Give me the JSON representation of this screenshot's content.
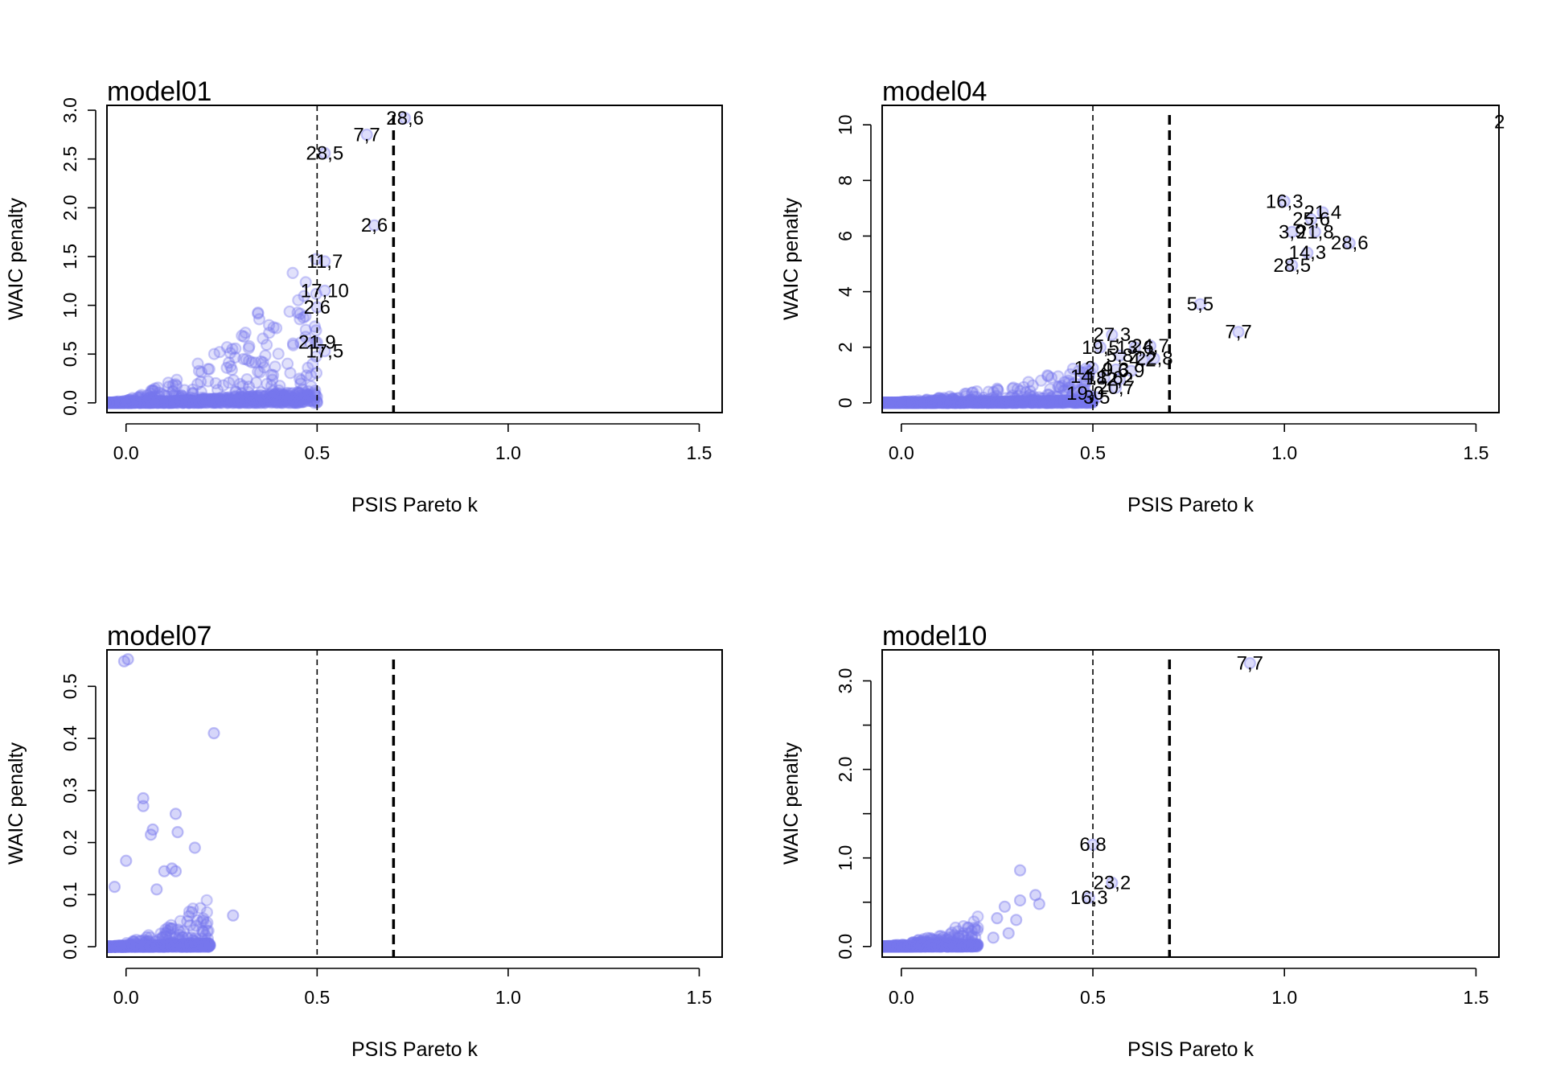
{
  "chart_data": [
    {
      "type": "scatter",
      "title": "model01",
      "xlabel": "PSIS Pareto k",
      "ylabel": "WAIC penalty",
      "xlim": [
        -0.05,
        1.56
      ],
      "ylim": [
        -0.1,
        3.05
      ],
      "xticks": [
        "0.0",
        "0.5",
        "1.0",
        "1.5"
      ],
      "yticks": [
        "0.0",
        "0.5",
        "1.0",
        "1.5",
        "2.0",
        "2.5",
        "3.0"
      ],
      "reference_lines": [
        {
          "x": 0.5,
          "style": "dashed-thin"
        },
        {
          "x": 0.7,
          "style": "dashed-thick"
        }
      ],
      "point_color": "#7777ee",
      "bulk_cloud": {
        "x_range": [
          -0.05,
          0.5
        ],
        "y_max": 1.65,
        "approx_points": 900
      },
      "labeled_points": [
        {
          "label": "28,6",
          "x": 0.73,
          "y": 2.92
        },
        {
          "label": "7,7",
          "x": 0.63,
          "y": 2.75
        },
        {
          "label": "28,5",
          "x": 0.52,
          "y": 2.56
        },
        {
          "label": "2,6",
          "x": 0.65,
          "y": 1.82
        },
        {
          "label": "11,7",
          "x": 0.52,
          "y": 1.45
        },
        {
          "label": "17,10",
          "x": 0.52,
          "y": 1.15
        },
        {
          "label": "2,6",
          "x": 0.5,
          "y": 0.98
        },
        {
          "label": "21,9",
          "x": 0.5,
          "y": 0.62
        },
        {
          "label": "17,5",
          "x": 0.52,
          "y": 0.53
        }
      ]
    },
    {
      "type": "scatter",
      "title": "model04",
      "xlabel": "PSIS Pareto k",
      "ylabel": "WAIC penalty",
      "xlim": [
        -0.05,
        1.56
      ],
      "ylim": [
        -0.35,
        10.7
      ],
      "xticks": [
        "0.0",
        "0.5",
        "1.0",
        "1.5"
      ],
      "yticks": [
        "0",
        "2",
        "4",
        "6",
        "8",
        "10"
      ],
      "reference_lines": [
        {
          "x": 0.5,
          "style": "dashed-thin"
        },
        {
          "x": 0.7,
          "style": "dashed-thick"
        }
      ],
      "point_color": "#7777ee",
      "bulk_cloud": {
        "x_range": [
          -0.05,
          0.5
        ],
        "y_max": 1.5,
        "approx_points": 900
      },
      "labeled_points": [
        {
          "label": "16,3",
          "x": 1.0,
          "y": 7.25
        },
        {
          "label": "21,4",
          "x": 1.1,
          "y": 6.85
        },
        {
          "label": "25,6",
          "x": 1.07,
          "y": 6.6
        },
        {
          "label": "3,9",
          "x": 1.02,
          "y": 6.15
        },
        {
          "label": "21,8",
          "x": 1.08,
          "y": 6.15
        },
        {
          "label": "28,6",
          "x": 1.17,
          "y": 5.75
        },
        {
          "label": "14,3",
          "x": 1.06,
          "y": 5.4
        },
        {
          "label": "28,5",
          "x": 1.02,
          "y": 4.95
        },
        {
          "label": "5,5",
          "x": 0.78,
          "y": 3.55
        },
        {
          "label": "7,7",
          "x": 0.88,
          "y": 2.55
        },
        {
          "label": "27,3",
          "x": 0.55,
          "y": 2.45
        },
        {
          "label": "19,5",
          "x": 0.52,
          "y": 2.0
        },
        {
          "label": "13,6",
          "x": 0.61,
          "y": 2.0
        },
        {
          "label": "24,7",
          "x": 0.65,
          "y": 2.05
        },
        {
          "label": "5,8",
          "x": 0.57,
          "y": 1.7
        },
        {
          "label": "4,2",
          "x": 0.63,
          "y": 1.55
        },
        {
          "label": "22,8",
          "x": 0.66,
          "y": 1.6
        },
        {
          "label": "12,4",
          "x": 0.5,
          "y": 1.25
        },
        {
          "label": "9,3",
          "x": 0.56,
          "y": 1.2
        },
        {
          "label": "6,9",
          "x": 0.6,
          "y": 1.15
        },
        {
          "label": "14,1",
          "x": 0.49,
          "y": 0.95
        },
        {
          "label": "18,6",
          "x": 0.53,
          "y": 0.9
        },
        {
          "label": "2,2",
          "x": 0.57,
          "y": 0.85
        },
        {
          "label": "19,0",
          "x": 0.48,
          "y": 0.35
        },
        {
          "label": "3,5",
          "x": 0.51,
          "y": 0.2
        },
        {
          "label": "20,7",
          "x": 0.56,
          "y": 0.55
        }
      ],
      "clipped_label_at_right_edge": "2"
    },
    {
      "type": "scatter",
      "title": "model07",
      "xlabel": "PSIS Pareto k",
      "ylabel": "WAIC penalty",
      "xlim": [
        -0.05,
        1.56
      ],
      "ylim": [
        -0.02,
        0.57
      ],
      "xticks": [
        "0.0",
        "0.5",
        "1.0",
        "1.5"
      ],
      "yticks": [
        "0.0",
        "0.1",
        "0.2",
        "0.3",
        "0.4",
        "0.5"
      ],
      "reference_lines": [
        {
          "x": 0.5,
          "style": "dashed-thin"
        },
        {
          "x": 0.7,
          "style": "dashed-thick"
        }
      ],
      "point_color": "#7777ee",
      "bulk_cloud": {
        "x_range": [
          -0.05,
          0.22
        ],
        "y_max": 0.1,
        "approx_points": 700
      },
      "outlier_points": [
        {
          "x": -0.005,
          "y": 0.548
        },
        {
          "x": 0.005,
          "y": 0.552
        },
        {
          "x": 0.23,
          "y": 0.41
        },
        {
          "x": 0.045,
          "y": 0.285
        },
        {
          "x": 0.045,
          "y": 0.27
        },
        {
          "x": 0.13,
          "y": 0.255
        },
        {
          "x": 0.07,
          "y": 0.225
        },
        {
          "x": 0.065,
          "y": 0.215
        },
        {
          "x": 0.135,
          "y": 0.22
        },
        {
          "x": 0.18,
          "y": 0.19
        },
        {
          "x": 0.0,
          "y": 0.165
        },
        {
          "x": 0.12,
          "y": 0.15
        },
        {
          "x": 0.1,
          "y": 0.145
        },
        {
          "x": 0.13,
          "y": 0.145
        },
        {
          "x": -0.03,
          "y": 0.115
        },
        {
          "x": 0.08,
          "y": 0.11
        },
        {
          "x": 0.28,
          "y": 0.06
        },
        {
          "x": 0.2,
          "y": 0.03
        }
      ],
      "labeled_points": []
    },
    {
      "type": "scatter",
      "title": "model10",
      "xlabel": "PSIS Pareto k",
      "ylabel": "WAIC penalty",
      "xlim": [
        -0.05,
        1.56
      ],
      "ylim": [
        -0.12,
        3.35
      ],
      "xticks": [
        "0.0",
        "0.5",
        "1.0",
        "1.5"
      ],
      "yticks": [
        "0.0",
        "1.0",
        "2.0",
        "3.0"
      ],
      "extra_y_tick_marks": [
        0.5,
        1.5,
        2.5
      ],
      "reference_lines": [
        {
          "x": 0.5,
          "style": "dashed-thin"
        },
        {
          "x": 0.7,
          "style": "dashed-thick"
        }
      ],
      "point_color": "#7777ee",
      "bulk_cloud": {
        "x_range": [
          -0.05,
          0.2
        ],
        "y_max": 0.35,
        "approx_points": 700
      },
      "outlier_points": [
        {
          "x": 0.31,
          "y": 0.86
        },
        {
          "x": 0.35,
          "y": 0.58
        },
        {
          "x": 0.36,
          "y": 0.48
        },
        {
          "x": 0.31,
          "y": 0.52
        },
        {
          "x": 0.27,
          "y": 0.45
        },
        {
          "x": 0.3,
          "y": 0.3
        },
        {
          "x": 0.25,
          "y": 0.32
        },
        {
          "x": 0.28,
          "y": 0.15
        },
        {
          "x": 0.24,
          "y": 0.1
        }
      ],
      "labeled_points": [
        {
          "label": "7,7",
          "x": 0.91,
          "y": 3.2
        },
        {
          "label": "6,8",
          "x": 0.5,
          "y": 1.15
        },
        {
          "label": "23,2",
          "x": 0.55,
          "y": 0.72
        },
        {
          "label": "16,3",
          "x": 0.49,
          "y": 0.55
        }
      ]
    }
  ]
}
